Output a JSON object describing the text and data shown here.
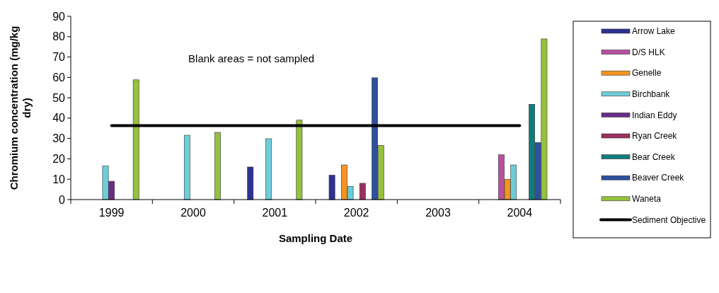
{
  "chart_data": {
    "type": "bar",
    "xlabel": "Sampling Date",
    "ylabel": "Chromium concentration (mg/kg dry)",
    "categories": [
      "1999",
      "2000",
      "2001",
      "2002",
      "2003",
      "2004"
    ],
    "series": [
      {
        "name": "Arrow Lake",
        "color": "#2e3192",
        "values": [
          null,
          null,
          16,
          12,
          null,
          null
        ]
      },
      {
        "name": "D/S HLK",
        "color": "#b84fa0",
        "values": [
          null,
          null,
          null,
          null,
          null,
          22
        ]
      },
      {
        "name": "Genelle",
        "color": "#f7941d",
        "values": [
          null,
          null,
          null,
          17,
          null,
          10
        ]
      },
      {
        "name": "Birchbank",
        "color": "#6dcdd9",
        "values": [
          16.5,
          31.6,
          29.9,
          6.5,
          null,
          17
        ]
      },
      {
        "name": "Indian Eddy",
        "color": "#6a2c8a",
        "values": [
          9,
          null,
          null,
          null,
          null,
          null
        ]
      },
      {
        "name": "Ryan Creek",
        "color": "#9b3060",
        "values": [
          null,
          null,
          null,
          8,
          null,
          null
        ]
      },
      {
        "name": "Bear Creek",
        "color": "#0e7c7b",
        "values": [
          null,
          null,
          null,
          null,
          null,
          46.8
        ]
      },
      {
        "name": "Beaver Creek",
        "color": "#2e4fa0",
        "values": [
          null,
          null,
          null,
          59.8,
          null,
          28
        ]
      },
      {
        "name": "Waneta",
        "color": "#95c13d",
        "values": [
          58.8,
          33,
          39,
          26.6,
          null,
          78.9
        ]
      }
    ],
    "ref_lines": [
      {
        "axis": "y",
        "value": 36.3,
        "label": "Sediment Objective",
        "color": "#000000",
        "line_style": "solid"
      }
    ],
    "annotations": [
      "Blank areas = not sampled"
    ],
    "ylim": [
      0,
      90
    ],
    "yticks": [
      0,
      10,
      20,
      30,
      40,
      50,
      60,
      70,
      80,
      90
    ],
    "grid": false,
    "legend": "right"
  }
}
